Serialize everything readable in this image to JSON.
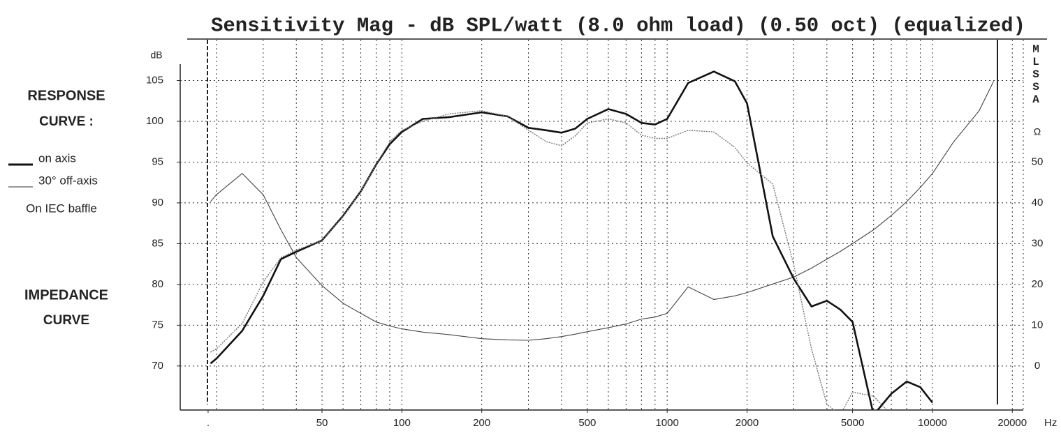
{
  "chart_data": {
    "type": "line",
    "title": "Sensitivity Mag - dB SPL/watt (8.0 ohm load) (0.50 oct) (equalized)",
    "side_label": "MLSSA",
    "y_label": "dB",
    "y2_label": "Ω",
    "x_label": "Hz",
    "legend_title": [
      "RESPONSE",
      "CURVE :"
    ],
    "note": "On IEC baffle",
    "log_x": true,
    "grid": true,
    "xlim": [
      14.6,
      22000
    ],
    "ylim": [
      64.6,
      110
    ],
    "y2lim": [
      -10.8,
      80
    ],
    "xticks": [
      {
        "value": 18.6,
        "label": "."
      },
      50,
      100,
      200,
      500,
      1000,
      2000,
      5000,
      10000,
      20000
    ],
    "xgrid": [
      20,
      30,
      40,
      50,
      60,
      70,
      80,
      90,
      100,
      200,
      300,
      400,
      500,
      600,
      700,
      800,
      900,
      1000,
      2000,
      3000,
      4000,
      5000,
      6000,
      7000,
      8000,
      9000,
      10000,
      20000
    ],
    "yticks": [
      70,
      75,
      80,
      85,
      90,
      95,
      100,
      105
    ],
    "y2ticks": [
      0,
      10,
      20,
      30,
      40,
      50
    ],
    "x": [
      19,
      20,
      25,
      30,
      35,
      40,
      50,
      60,
      70,
      80,
      90,
      100,
      120,
      150,
      200,
      250,
      300,
      350,
      400,
      450,
      500,
      600,
      700,
      800,
      900,
      1000,
      1200,
      1500,
      1800,
      2000,
      2500,
      3000,
      3500,
      4000,
      4500,
      5000,
      6000,
      7000,
      8000,
      9000,
      10000,
      12000,
      15000,
      17000
    ],
    "series": [
      {
        "name": "on axis",
        "color": "#111111",
        "values": [
          70.3,
          70.9,
          74.3,
          78.6,
          83.1,
          84,
          85.4,
          88.4,
          91.4,
          94.7,
          97.2,
          98.7,
          100.3,
          100.5,
          101.1,
          100.6,
          99.2,
          98.9,
          98.6,
          99.1,
          100.3,
          101.5,
          100.9,
          99.8,
          99.6,
          100.3,
          104.7,
          106.1,
          104.9,
          102.2,
          85.9,
          80.7,
          77.3,
          78,
          76.9,
          75.4,
          64,
          66.6,
          68.1,
          67.4,
          65.5,
          null,
          null,
          null
        ]
      },
      {
        "name": "30° off-axis",
        "color": "#777777",
        "values": [
          71.7,
          72.1,
          75.2,
          80.3,
          83.3,
          84.2,
          85.4,
          88.3,
          91.4,
          94.7,
          97.5,
          98.9,
          100,
          100.9,
          101.3,
          100.6,
          98.9,
          97.5,
          97,
          98.2,
          99.8,
          100.3,
          99.8,
          98.3,
          97.9,
          97.9,
          98.9,
          98.7,
          96.8,
          94.9,
          92.3,
          82.4,
          72.1,
          65.3,
          64,
          66.8,
          66.3,
          64,
          null,
          null,
          null,
          null,
          null,
          null
        ]
      }
    ],
    "impedance": {
      "label": [
        "IMPEDANCE",
        "CURVE"
      ],
      "color": "#444444",
      "axis": "y2",
      "values": [
        40.3,
        42,
        47.2,
        42,
        33.4,
        26.6,
        19.7,
        15.4,
        12.9,
        10.8,
        9.8,
        9.1,
        8.3,
        7.7,
        6.7,
        6.4,
        6.3,
        6.7,
        7.2,
        7.8,
        8.4,
        9.4,
        10.3,
        11.5,
        12,
        12.9,
        19.4,
        16.3,
        17.2,
        18,
        20.1,
        21.8,
        24,
        26.2,
        28.1,
        30,
        33.4,
        36.9,
        40.3,
        43.8,
        47.2,
        54.9,
        62.6,
        69.8
      ]
    }
  }
}
